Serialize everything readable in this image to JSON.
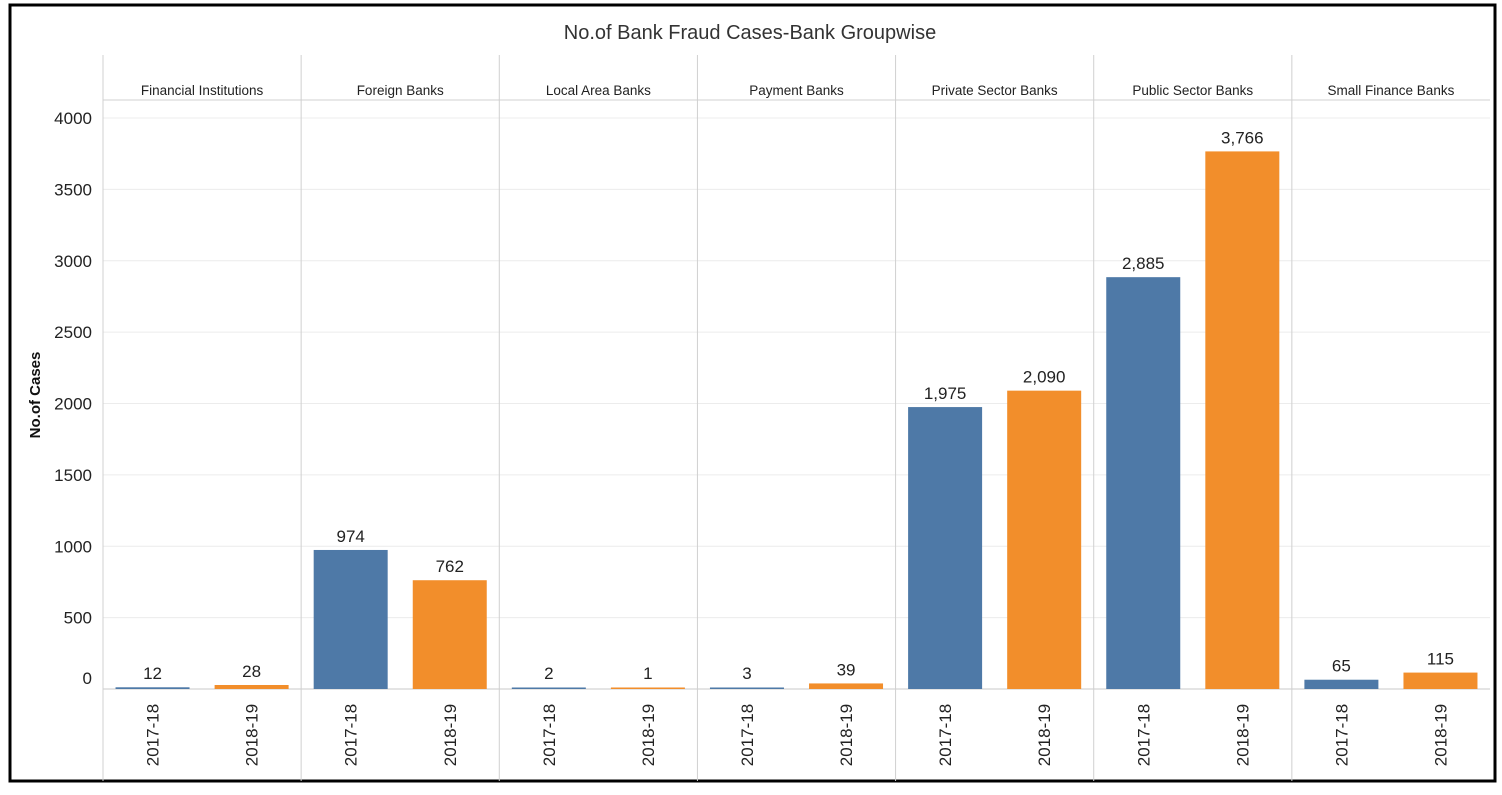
{
  "chart_data": {
    "type": "bar",
    "title": "No.of Bank Fraud Cases-Bank Groupwise",
    "ylabel": "No.of Cases",
    "xlabel": "",
    "ylim": [
      0,
      4130
    ],
    "yticks": [
      0,
      500,
      1000,
      1500,
      2000,
      2500,
      3000,
      3500,
      4000
    ],
    "grid": true,
    "legend": "none",
    "categories": [
      "2017-18",
      "2018-19"
    ],
    "colors": {
      "2017-18": "#4e79a7",
      "2018-19": "#f28e2b"
    },
    "panels": [
      {
        "name": "Financial Institutions",
        "values": [
          12,
          28
        ],
        "labels": [
          "12",
          "28"
        ]
      },
      {
        "name": "Foreign Banks",
        "values": [
          974,
          762
        ],
        "labels": [
          "974",
          "762"
        ]
      },
      {
        "name": "Local Area Banks",
        "values": [
          2,
          1
        ],
        "labels": [
          "2",
          "1"
        ]
      },
      {
        "name": "Payment Banks",
        "values": [
          3,
          39
        ],
        "labels": [
          "3",
          "39"
        ]
      },
      {
        "name": "Private Sector Banks",
        "values": [
          1975,
          2090
        ],
        "labels": [
          "1,975",
          "2,090"
        ]
      },
      {
        "name": "Public Sector Banks",
        "values": [
          2885,
          3766
        ],
        "labels": [
          "2,885",
          "3,766"
        ]
      },
      {
        "name": "Small Finance Banks",
        "values": [
          65,
          115
        ],
        "labels": [
          "65",
          "115"
        ]
      }
    ]
  }
}
